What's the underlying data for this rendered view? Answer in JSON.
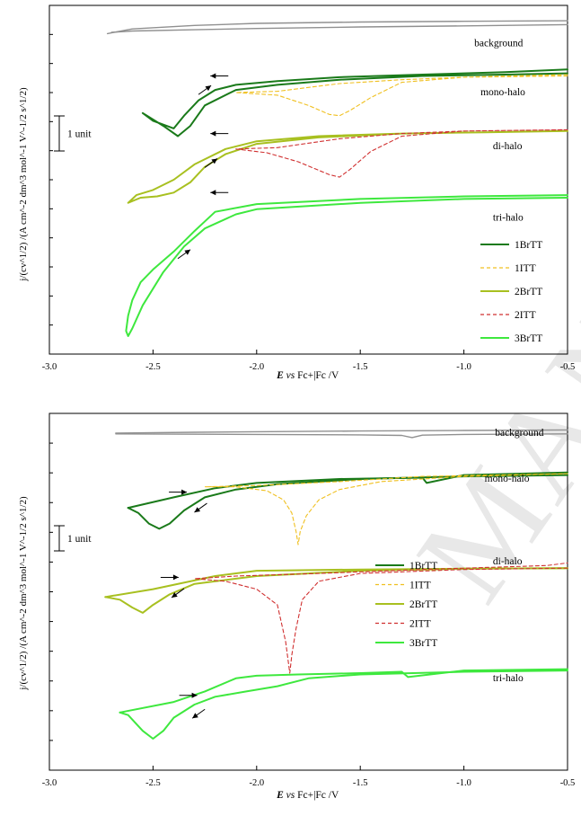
{
  "watermark": {
    "text": "MANUSCRIPT"
  },
  "chart_data": [
    {
      "type": "line",
      "panel": "top",
      "xlabel_parts": [
        "E",
        "vs",
        "Fc+|Fc /V"
      ],
      "ylabel": "j/(cv^1/2) /(A cm^-2 dm^3 mol^-1 V^-1/2 s^1/2)",
      "xlim": [
        -3.0,
        -0.5
      ],
      "xticks": [
        -3.0,
        -2.5,
        -2.0,
        -1.5,
        -1.0,
        -0.5
      ],
      "xtick_labels": [
        "-3.0",
        "-2.5",
        "-2.0",
        "-1.5",
        "-1.0",
        "-0.5"
      ],
      "ylim": [
        -12.4,
        1.2
      ],
      "scale_bar_label": "1 unit",
      "trace_labels": [
        {
          "text": "background",
          "x": -0.95,
          "y": -0.4
        },
        {
          "text": "mono-halo",
          "x": -0.92,
          "y": -2.3
        },
        {
          "text": "di-halo",
          "x": -0.86,
          "y": -4.4
        },
        {
          "text": "tri-halo",
          "x": -0.86,
          "y": -7.2
        }
      ],
      "legend": {
        "placement": "right",
        "entries": [
          {
            "label": "1BrTT",
            "color": "#1a7a1a",
            "dash": "none"
          },
          {
            "label": "1ITT",
            "color": "#f0c020",
            "dash": "4,3"
          },
          {
            "label": "2BrTT",
            "color": "#a8c020",
            "dash": "none"
          },
          {
            "label": "2ITT",
            "color": "#d03030",
            "dash": "4,3"
          },
          {
            "label": "3BrTT",
            "color": "#3ee83e",
            "dash": "none"
          }
        ]
      },
      "series": [
        {
          "color": "#909090",
          "width": 1.4,
          "dash": "none",
          "x": [
            -2.72,
            -2.6,
            -2.3,
            -2.0,
            -1.5,
            -1.0,
            -0.5
          ],
          "y": [
            0.1,
            0.28,
            0.42,
            0.5,
            0.55,
            0.58,
            0.6
          ]
        },
        {
          "color": "#909090",
          "width": 1.4,
          "dash": "none",
          "x": [
            -0.5,
            -1.0,
            -1.5,
            -2.0,
            -2.3,
            -2.6,
            -2.7
          ],
          "y": [
            0.45,
            0.4,
            0.36,
            0.3,
            0.25,
            0.2,
            0.15
          ]
        },
        {
          "color": "#1a7a1a",
          "width": 2.0,
          "dash": "none",
          "x": [
            -0.5,
            -0.8,
            -1.2,
            -1.6,
            -1.9,
            -2.1,
            -2.2,
            -2.28,
            -2.35,
            -2.4,
            -2.5,
            -2.55,
            -2.45,
            -2.38,
            -2.32,
            -2.25,
            -2.1,
            -1.9,
            -1.6,
            -1.2,
            -0.8,
            -0.5
          ],
          "y": [
            -1.3,
            -1.4,
            -1.5,
            -1.6,
            -1.75,
            -1.9,
            -2.1,
            -2.5,
            -3.1,
            -3.6,
            -3.3,
            -3.0,
            -3.5,
            -3.9,
            -3.5,
            -2.7,
            -2.1,
            -1.9,
            -1.7,
            -1.55,
            -1.5,
            -1.45
          ]
        },
        {
          "color": "#f0c020",
          "width": 1.1,
          "dash": "4,3",
          "x": [
            -0.5,
            -1.0,
            -1.3,
            -1.45,
            -1.55,
            -1.6,
            -1.65,
            -1.75,
            -1.9,
            -2.1,
            -1.9,
            -1.6,
            -1.3,
            -1.0,
            -0.5
          ],
          "y": [
            -1.5,
            -1.6,
            -1.8,
            -2.4,
            -2.9,
            -3.1,
            -3.05,
            -2.7,
            -2.3,
            -2.2,
            -2.15,
            -1.85,
            -1.7,
            -1.6,
            -1.55
          ]
        },
        {
          "color": "#a8c020",
          "width": 2.0,
          "dash": "none",
          "x": [
            -0.5,
            -0.9,
            -1.3,
            -1.7,
            -2.0,
            -2.15,
            -2.3,
            -2.4,
            -2.5,
            -2.58,
            -2.62,
            -2.56,
            -2.48,
            -2.4,
            -2.32,
            -2.25,
            -2.15,
            -2.0,
            -1.7,
            -1.3,
            -0.9,
            -0.5
          ],
          "y": [
            -3.7,
            -3.75,
            -3.8,
            -3.9,
            -4.1,
            -4.4,
            -5.0,
            -5.6,
            -6.0,
            -6.2,
            -6.5,
            -6.3,
            -6.25,
            -6.1,
            -5.7,
            -5.1,
            -4.6,
            -4.2,
            -3.95,
            -3.8,
            -3.75,
            -3.7
          ]
        },
        {
          "color": "#d03030",
          "width": 1.1,
          "dash": "4,3",
          "x": [
            -0.5,
            -1.0,
            -1.3,
            -1.45,
            -1.55,
            -1.6,
            -1.65,
            -1.8,
            -1.95,
            -2.1,
            -1.9,
            -1.6,
            -1.3,
            -1.0,
            -0.5
          ],
          "y": [
            -3.65,
            -3.7,
            -3.9,
            -4.5,
            -5.2,
            -5.5,
            -5.4,
            -4.9,
            -4.55,
            -4.4,
            -4.35,
            -4.0,
            -3.8,
            -3.7,
            -3.65
          ]
        },
        {
          "color": "#3ee83e",
          "width": 2.0,
          "dash": "none",
          "x": [
            -0.5,
            -1.0,
            -1.5,
            -2.0,
            -2.2,
            -2.3,
            -2.4,
            -2.5,
            -2.56,
            -2.6,
            -2.62,
            -2.63,
            -2.62,
            -2.6,
            -2.55,
            -2.45,
            -2.35,
            -2.25,
            -2.1,
            -2.0,
            -1.5,
            -1.0,
            -0.5
          ],
          "y": [
            -6.2,
            -6.25,
            -6.35,
            -6.55,
            -6.85,
            -7.6,
            -8.4,
            -9.1,
            -9.6,
            -10.3,
            -10.9,
            -11.5,
            -11.7,
            -11.4,
            -10.5,
            -9.2,
            -8.2,
            -7.5,
            -6.95,
            -6.75,
            -6.5,
            -6.35,
            -6.3
          ]
        }
      ],
      "arrows": [
        {
          "dir": "left",
          "x": -2.18,
          "y": -1.55
        },
        {
          "dir": "up-right",
          "x": -2.25,
          "y": -2.1
        },
        {
          "dir": "left",
          "x": -2.18,
          "y": -3.8
        },
        {
          "dir": "up-right",
          "x": -2.22,
          "y": -4.95
        },
        {
          "dir": "left",
          "x": -2.18,
          "y": -6.1
        },
        {
          "dir": "up-right",
          "x": -2.35,
          "y": -8.5
        }
      ]
    },
    {
      "type": "line",
      "panel": "bottom",
      "xlabel_parts": [
        "E",
        "vs",
        "Fc+|Fc /V"
      ],
      "ylabel": "j/(cv^1/2) /(A cm^-2 dm^3 mol^-1 V^-1/2 s^1/2)",
      "xlim": [
        -3.0,
        -0.5
      ],
      "xticks": [
        -3.0,
        -2.5,
        -2.0,
        -1.5,
        -1.0,
        -0.5
      ],
      "xtick_labels": [
        "-3.0",
        "-2.5",
        "-2.0",
        "-1.5",
        "-1.0",
        "-0.5"
      ],
      "ylim": [
        -12.4,
        1.2
      ],
      "scale_bar_label": "1 unit",
      "trace_labels": [
        {
          "text": "background",
          "x": -0.85,
          "y": 0.35
        },
        {
          "text": "mono-halo",
          "x": -0.9,
          "y": -1.4
        },
        {
          "text": "di-halo",
          "x": -0.86,
          "y": -4.55
        },
        {
          "text": "tri-halo",
          "x": -0.86,
          "y": -9.0
        }
      ],
      "legend": {
        "placement": "right",
        "entries": [
          {
            "label": "1BrTT",
            "color": "#1a7a1a",
            "dash": "none"
          },
          {
            "label": "1ITT",
            "color": "#f0c020",
            "dash": "4,3"
          },
          {
            "label": "2BrTT",
            "color": "#a8c020",
            "dash": "none"
          },
          {
            "label": "2ITT",
            "color": "#d03030",
            "dash": "4,3"
          },
          {
            "label": "3BrTT",
            "color": "#3ee83e",
            "dash": "none"
          }
        ]
      },
      "series": [
        {
          "color": "#909090",
          "width": 1.4,
          "dash": "none",
          "x": [
            -2.68,
            -2.3,
            -2.0,
            -1.5,
            -1.0,
            -0.5
          ],
          "y": [
            0.45,
            0.48,
            0.5,
            0.53,
            0.55,
            0.57
          ]
        },
        {
          "color": "#909090",
          "width": 1.4,
          "dash": "none",
          "x": [
            -0.5,
            -1.0,
            -1.2,
            -1.25,
            -1.3,
            -1.5,
            -2.0,
            -2.68
          ],
          "y": [
            0.42,
            0.4,
            0.37,
            0.28,
            0.36,
            0.38,
            0.4,
            0.42
          ]
        },
        {
          "color": "#1a7a1a",
          "width": 2.0,
          "dash": "none",
          "x": [
            -2.62,
            -2.4,
            -2.2,
            -2.0,
            -1.6,
            -1.2,
            -1.18,
            -1.0,
            -0.5
          ],
          "y": [
            -2.4,
            -2.0,
            -1.65,
            -1.45,
            -1.3,
            -1.25,
            -1.45,
            -1.15,
            -1.05
          ]
        },
        {
          "color": "#1a7a1a",
          "width": 2.0,
          "dash": "none",
          "x": [
            -0.5,
            -1.0,
            -1.5,
            -1.9,
            -2.1,
            -2.25,
            -2.35,
            -2.42,
            -2.47,
            -2.52,
            -2.57,
            -2.62
          ],
          "y": [
            -1.15,
            -1.2,
            -1.3,
            -1.5,
            -1.7,
            -2.0,
            -2.5,
            -3.0,
            -3.2,
            -3.0,
            -2.6,
            -2.4
          ]
        },
        {
          "color": "#f0c020",
          "width": 1.1,
          "dash": "4,3",
          "x": [
            -0.5,
            -1.0,
            -1.4,
            -1.6,
            -1.7,
            -1.76,
            -1.79,
            -1.8,
            -1.81,
            -1.83,
            -1.87,
            -1.95,
            -2.1,
            -2.25,
            -2.0,
            -1.6,
            -1.2,
            -0.5
          ],
          "y": [
            -1.1,
            -1.2,
            -1.4,
            -1.7,
            -2.1,
            -2.7,
            -3.3,
            -3.8,
            -3.3,
            -2.6,
            -2.1,
            -1.75,
            -1.6,
            -1.6,
            -1.55,
            -1.4,
            -1.2,
            -1.1
          ]
        },
        {
          "color": "#a8c020",
          "width": 2.0,
          "dash": "none",
          "x": [
            -2.73,
            -2.5,
            -2.2,
            -2.0,
            -1.5,
            -1.0,
            -0.5
          ],
          "y": [
            -5.8,
            -5.5,
            -5.0,
            -4.8,
            -4.75,
            -4.72,
            -4.7
          ]
        },
        {
          "color": "#a8c020",
          "width": 2.0,
          "dash": "none",
          "x": [
            -0.5,
            -1.0,
            -1.5,
            -2.0,
            -2.3,
            -2.42,
            -2.5,
            -2.55,
            -2.6,
            -2.66,
            -2.73
          ],
          "y": [
            -4.7,
            -4.72,
            -4.8,
            -5.0,
            -5.3,
            -5.7,
            -6.1,
            -6.4,
            -6.2,
            -5.9,
            -5.8
          ]
        },
        {
          "color": "#d03030",
          "width": 1.1,
          "dash": "4,3",
          "x": [
            -0.5,
            -1.0,
            -1.5,
            -1.7,
            -1.78,
            -1.81,
            -1.83,
            -1.84,
            -1.86,
            -1.9,
            -2.0,
            -2.15,
            -2.3,
            -2.1,
            -1.7,
            -1.2,
            -0.6,
            -0.5
          ],
          "y": [
            -4.7,
            -4.75,
            -4.9,
            -5.2,
            -5.9,
            -7.0,
            -8.0,
            -8.7,
            -7.5,
            -6.1,
            -5.5,
            -5.2,
            -5.1,
            -5.0,
            -4.9,
            -4.75,
            -4.6,
            -4.5
          ]
        },
        {
          "color": "#3ee83e",
          "width": 2.0,
          "dash": "none",
          "x": [
            -2.66,
            -2.4,
            -2.25,
            -2.1,
            -2.0,
            -1.8,
            -1.5,
            -1.3,
            -1.27,
            -1.0,
            -0.5
          ],
          "y": [
            -10.2,
            -9.8,
            -9.4,
            -8.9,
            -8.8,
            -8.75,
            -8.7,
            -8.65,
            -8.85,
            -8.6,
            -8.55
          ]
        },
        {
          "color": "#3ee83e",
          "width": 2.0,
          "dash": "none",
          "x": [
            -0.5,
            -1.0,
            -1.5,
            -1.75,
            -1.9,
            -2.05,
            -2.2,
            -2.3,
            -2.4,
            -2.45,
            -2.5,
            -2.55,
            -2.62,
            -2.66
          ],
          "y": [
            -8.6,
            -8.65,
            -8.75,
            -8.9,
            -9.2,
            -9.4,
            -9.6,
            -9.9,
            -10.4,
            -10.9,
            -11.2,
            -10.9,
            -10.3,
            -10.2
          ]
        }
      ],
      "arrows": [
        {
          "dir": "right",
          "x": -2.38,
          "y": -1.8
        },
        {
          "dir": "down-left",
          "x": -2.27,
          "y": -2.4
        },
        {
          "dir": "right",
          "x": -2.42,
          "y": -5.05
        },
        {
          "dir": "down-left",
          "x": -2.38,
          "y": -5.65
        },
        {
          "dir": "right",
          "x": -2.33,
          "y": -9.55
        },
        {
          "dir": "down-left",
          "x": -2.28,
          "y": -10.25
        }
      ]
    }
  ]
}
